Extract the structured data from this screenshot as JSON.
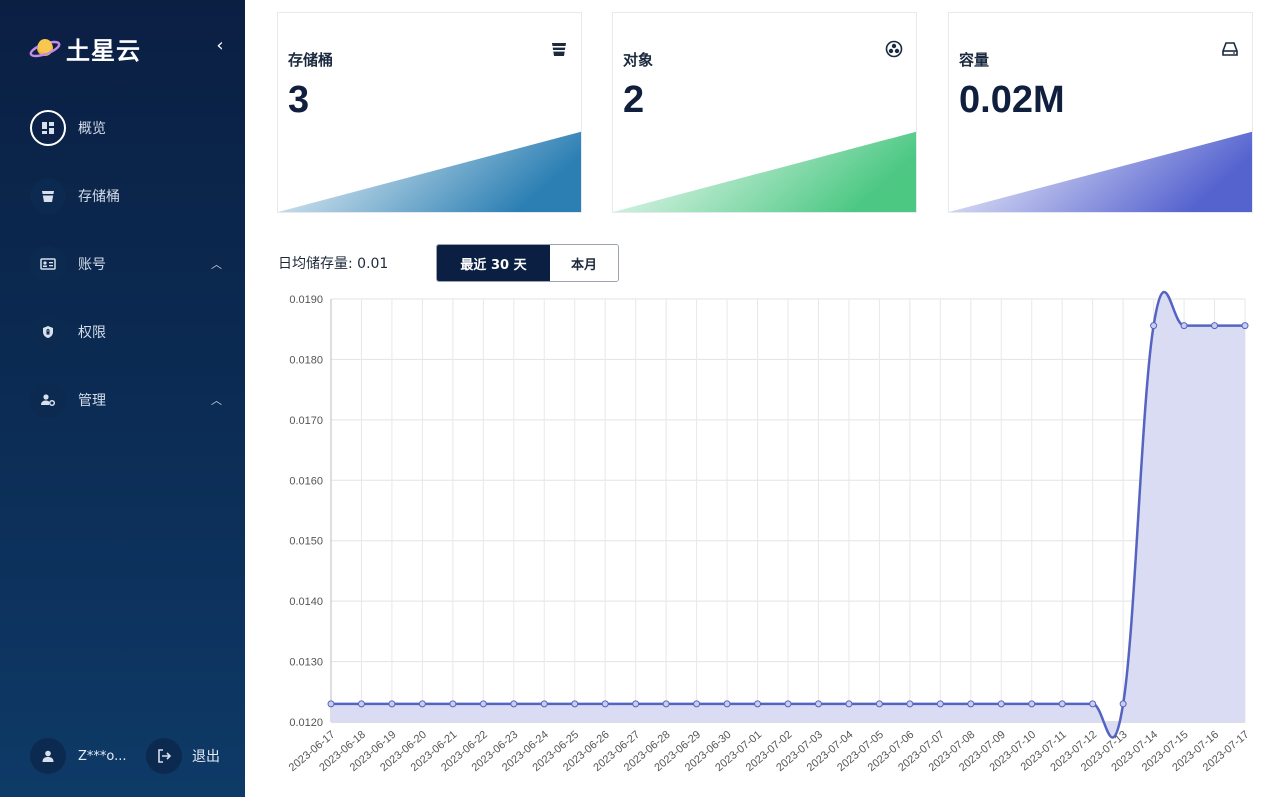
{
  "app": {
    "title": "土星云"
  },
  "sidebar": {
    "items": [
      {
        "label": "概览",
        "icon": "dashboard-icon",
        "active": true
      },
      {
        "label": "存储桶",
        "icon": "bucket-icon"
      },
      {
        "label": "账号",
        "icon": "id-card-icon",
        "expandable": true
      },
      {
        "label": "权限",
        "icon": "shield-lock-icon"
      },
      {
        "label": "管理",
        "icon": "user-gear-icon",
        "expandable": true
      }
    ],
    "user": {
      "name": "Z***o..."
    },
    "logout_label": "退出"
  },
  "cards": [
    {
      "label": "存储桶",
      "value": "3",
      "icon": "bucket-icon",
      "accent": "#2b7fb3"
    },
    {
      "label": "对象",
      "value": "2",
      "icon": "objects-icon",
      "accent": "#4cc883"
    },
    {
      "label": "容量",
      "value": "0.02M",
      "icon": "drive-icon",
      "accent": "#5563cf"
    }
  ],
  "toolbar": {
    "avg_label": "日均储存量: 0.01",
    "range_buttons": [
      "最近 30 天",
      "本月"
    ],
    "active_range": "最近 30 天"
  },
  "chart_data": {
    "type": "area",
    "x": [
      "2023-06-17",
      "2023-06-18",
      "2023-06-19",
      "2023-06-20",
      "2023-06-21",
      "2023-06-22",
      "2023-06-23",
      "2023-06-24",
      "2023-06-25",
      "2023-06-26",
      "2023-06-27",
      "2023-06-28",
      "2023-06-29",
      "2023-06-30",
      "2023-07-01",
      "2023-07-02",
      "2023-07-03",
      "2023-07-04",
      "2023-07-05",
      "2023-07-06",
      "2023-07-07",
      "2023-07-08",
      "2023-07-09",
      "2023-07-10",
      "2023-07-11",
      "2023-07-12",
      "2023-07-13",
      "2023-07-14",
      "2023-07-15",
      "2023-07-16",
      "2023-07-17"
    ],
    "values": [
      0.0123,
      0.0123,
      0.0123,
      0.0123,
      0.0123,
      0.0123,
      0.0123,
      0.0123,
      0.0123,
      0.0123,
      0.0123,
      0.0123,
      0.0123,
      0.0123,
      0.0123,
      0.0123,
      0.0123,
      0.0123,
      0.0123,
      0.0123,
      0.0123,
      0.0123,
      0.0123,
      0.0123,
      0.0123,
      0.0123,
      0.0123,
      0.01856,
      0.01856,
      0.01856,
      0.01856
    ],
    "ylim": [
      0.012,
      0.019
    ],
    "yticks": [
      "0.0190",
      "0.0180",
      "0.0170",
      "0.0160",
      "0.0150",
      "0.0140",
      "0.0130",
      "0.0120"
    ],
    "grid": true,
    "line_color": "#5563c1",
    "fill_color": "#d9dcf3"
  }
}
